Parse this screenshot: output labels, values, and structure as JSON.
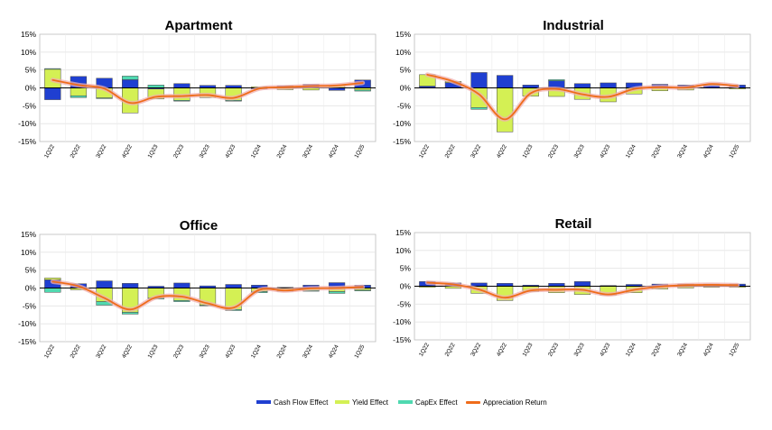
{
  "chart_data": [
    {
      "type": "bar",
      "title": "Apartment",
      "categories": [
        "1Q22",
        "2Q22",
        "3Q22",
        "4Q22",
        "1Q23",
        "2Q23",
        "3Q23",
        "4Q23",
        "1Q24",
        "2Q24",
        "3Q24",
        "4Q24",
        "1Q25"
      ],
      "y_ticks": [
        "15%",
        "10%",
        "5%",
        "0%",
        "-5%",
        "-10%",
        "-15%"
      ],
      "ylim": [
        -15,
        15
      ],
      "series": [
        {
          "name": "Cash Flow Effect",
          "values": [
            -3.3,
            3.2,
            2.7,
            2.3,
            -0.3,
            1.2,
            0.7,
            0.7,
            -0.3,
            0.6,
            1.0,
            -0.7,
            2.2
          ]
        },
        {
          "name": "Yield Effect",
          "values": [
            5.2,
            -2.2,
            -2.8,
            -7.0,
            -2.8,
            -3.5,
            -2.7,
            -3.5,
            0.3,
            -0.5,
            -0.6,
            0.7,
            -0.6
          ]
        },
        {
          "name": "CapEx Effect",
          "values": [
            0.2,
            -0.5,
            -0.2,
            1.0,
            0.8,
            -0.2,
            0.0,
            -0.2,
            0.0,
            0.0,
            0.0,
            0.0,
            -0.3
          ]
        },
        {
          "name": "Appreciation Return",
          "values": [
            2.2,
            0.8,
            -0.2,
            -4.2,
            -2.5,
            -2.3,
            -2.0,
            -2.8,
            -0.2,
            0.2,
            0.5,
            0.7,
            1.4
          ]
        }
      ]
    },
    {
      "type": "bar",
      "title": "Industrial",
      "categories": [
        "1Q22",
        "2Q22",
        "3Q22",
        "4Q22",
        "1Q23",
        "2Q23",
        "3Q23",
        "4Q23",
        "1Q24",
        "2Q24",
        "3Q24",
        "4Q24",
        "1Q25"
      ],
      "y_ticks": [
        "15%",
        "10%",
        "5%",
        "0%",
        "-5%",
        "-10%",
        "-15%"
      ],
      "ylim": [
        -15,
        15
      ],
      "series": [
        {
          "name": "Cash Flow Effect",
          "values": [
            0.5,
            1.5,
            4.3,
            3.5,
            0.8,
            2.0,
            1.2,
            1.4,
            1.4,
            1.0,
            0.8,
            0.7,
            0.8
          ]
        },
        {
          "name": "Yield Effect",
          "values": [
            3.2,
            0.3,
            -5.5,
            -12.3,
            -2.3,
            -2.4,
            -3.2,
            -3.9,
            -1.7,
            -0.8,
            -0.6,
            0.2,
            -0.3
          ]
        },
        {
          "name": "CapEx Effect",
          "values": [
            0.0,
            0.0,
            -0.5,
            0.0,
            0.0,
            0.3,
            0.0,
            0.0,
            0.0,
            0.0,
            0.0,
            0.0,
            0.0
          ]
        },
        {
          "name": "Appreciation Return",
          "values": [
            3.7,
            1.8,
            -1.8,
            -8.8,
            -1.5,
            -0.3,
            -1.8,
            -2.5,
            -0.3,
            0.2,
            0.1,
            1.1,
            0.5
          ]
        }
      ]
    },
    {
      "type": "bar",
      "title": "Office",
      "categories": [
        "1Q22",
        "2Q22",
        "3Q22",
        "4Q22",
        "1Q23",
        "2Q23",
        "3Q23",
        "4Q23",
        "1Q24",
        "2Q24",
        "3Q24",
        "4Q24",
        "1Q25"
      ],
      "y_ticks": [
        "15%",
        "10%",
        "5%",
        "0%",
        "-5%",
        "-10%",
        "-15%"
      ],
      "ylim": [
        -15,
        15
      ],
      "series": [
        {
          "name": "Cash Flow Effect",
          "values": [
            2.3,
            1.2,
            2.0,
            1.3,
            0.5,
            1.4,
            0.6,
            1.0,
            0.8,
            0.2,
            0.8,
            1.5,
            0.8
          ]
        },
        {
          "name": "Yield Effect",
          "values": [
            0.5,
            -0.5,
            -3.8,
            -6.8,
            -2.8,
            -3.5,
            -4.8,
            -6.0,
            -1.0,
            -0.6,
            -0.7,
            -1.0,
            -0.6
          ]
        },
        {
          "name": "CapEx Effect",
          "values": [
            -1.2,
            0.0,
            -1.0,
            -0.5,
            -0.3,
            -0.3,
            -0.2,
            -0.3,
            -0.3,
            -0.3,
            -0.2,
            -0.5,
            -0.2
          ]
        },
        {
          "name": "Appreciation Return",
          "values": [
            1.8,
            0.5,
            -2.8,
            -6.0,
            -2.6,
            -2.4,
            -4.3,
            -5.5,
            -0.5,
            -0.7,
            -0.1,
            0.0,
            0.3
          ]
        }
      ]
    },
    {
      "type": "bar",
      "title": "Retail",
      "categories": [
        "1Q22",
        "2Q22",
        "3Q22",
        "4Q22",
        "1Q23",
        "2Q23",
        "3Q23",
        "4Q23",
        "1Q24",
        "2Q24",
        "3Q24",
        "4Q24",
        "1Q25"
      ],
      "y_ticks": [
        "15%",
        "10%",
        "5%",
        "0%",
        "-5%",
        "-10%",
        "-15%"
      ],
      "ylim": [
        -15,
        15
      ],
      "series": [
        {
          "name": "Cash Flow Effect",
          "values": [
            1.3,
            0.9,
            0.9,
            0.8,
            0.3,
            0.8,
            1.3,
            0.2,
            0.5,
            0.6,
            0.6,
            0.6,
            0.6
          ]
        },
        {
          "name": "Yield Effect",
          "values": [
            -0.3,
            -0.6,
            -2.0,
            -4.0,
            -1.5,
            -1.8,
            -2.3,
            -2.5,
            -1.8,
            -0.8,
            -0.5,
            -0.3,
            -0.3
          ]
        },
        {
          "name": "CapEx Effect",
          "values": [
            0.0,
            0.0,
            0.0,
            0.0,
            0.0,
            0.0,
            0.0,
            0.0,
            0.0,
            0.0,
            0.0,
            0.0,
            0.0
          ]
        },
        {
          "name": "Appreciation Return",
          "values": [
            1.0,
            0.5,
            -0.9,
            -3.2,
            -1.2,
            -1.0,
            -1.0,
            -2.3,
            -1.0,
            -0.1,
            0.3,
            0.4,
            0.3
          ]
        }
      ]
    }
  ],
  "legend": {
    "items": [
      {
        "label": "Cash Flow Effect",
        "color": "#1f3fd1"
      },
      {
        "label": "Yield Effect",
        "color": "#d4f054"
      },
      {
        "label": "CapEx Effect",
        "color": "#4fd9b0"
      },
      {
        "label": "Appreciation Return",
        "color": "#ef6c1a"
      }
    ]
  },
  "colors": {
    "cash_flow": "#1f3fd1",
    "yield": "#d4f054",
    "capex": "#4fd9b0",
    "appreciation": "#ef6c1a",
    "appreciation_glow": "#f0b0b0"
  }
}
